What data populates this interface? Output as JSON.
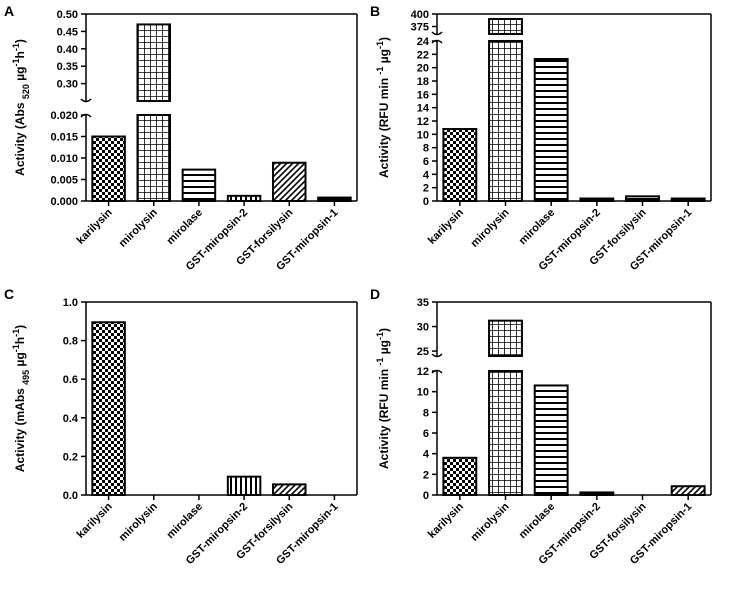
{
  "categories": [
    "karilysin",
    "mirolysin",
    "mirolase",
    "GST-miropsin-2",
    "GST-forsilysin",
    "GST-miropsin-1"
  ],
  "chart_data": [
    {
      "panel": "A",
      "type": "bar",
      "ylabel": "Activity (Abs 520 µg⁻¹h⁻¹)",
      "ylabel_parts": {
        "main": "Activity (Abs",
        "sub": "520",
        "unit1": "µg",
        "sup1": "-1",
        "unit2": "h",
        "sup2": "-1",
        "close": ")"
      },
      "values": [
        0.015,
        0.47,
        0.0073,
        0.0012,
        0.0089,
        0.0008
      ],
      "patterns": [
        "checker",
        "grid",
        "hlines",
        "vlines",
        "diag",
        "hlines"
      ],
      "segments": [
        {
          "min": 0,
          "max": 0.02,
          "ticks": [
            "0.000",
            "0.005",
            "0.010",
            "0.015",
            "0.020"
          ],
          "tickvals": [
            0,
            0.005,
            0.01,
            0.015,
            0.02
          ]
        },
        {
          "min": 0.25,
          "max": 0.5,
          "ticks": [
            "0.30",
            "0.35",
            "0.40",
            "0.45",
            "0.50"
          ],
          "tickvals": [
            0.3,
            0.35,
            0.4,
            0.45,
            0.5
          ]
        }
      ]
    },
    {
      "panel": "B",
      "type": "bar",
      "ylabel": "Activity (RFU min⁻¹ µg⁻¹)",
      "ylabel_parts": {
        "main": "Activity (RFU min",
        "sub": "",
        "unit1": "",
        "sup1": "-1",
        "unit2": " µg",
        "sup2": "-1",
        "close": ")"
      },
      "values": [
        10.8,
        390,
        21.3,
        0.15,
        0.7,
        0.25
      ],
      "patterns": [
        "checker",
        "grid",
        "hlines",
        "hlines",
        "hlines",
        "hlines"
      ],
      "segments": [
        {
          "min": 0,
          "max": 24,
          "ticks": [
            "0",
            "2",
            "4",
            "6",
            "8",
            "10",
            "12",
            "14",
            "16",
            "18",
            "20",
            "22",
            "24"
          ],
          "tickvals": [
            0,
            2,
            4,
            6,
            8,
            10,
            12,
            14,
            16,
            18,
            20,
            22,
            24
          ]
        },
        {
          "min": 360,
          "max": 400,
          "ticks": [
            "375",
            "400"
          ],
          "tickvals": [
            375,
            400
          ]
        }
      ]
    },
    {
      "panel": "C",
      "type": "bar",
      "ylabel": "Activity (mAbs 495 µg⁻¹h⁻¹)",
      "ylabel_parts": {
        "main": "Activity (mAbs",
        "sub": "495",
        "unit1": "µg",
        "sup1": "-1",
        "unit2": "h",
        "sup2": "-1",
        "close": ")"
      },
      "values": [
        0.895,
        0,
        0,
        0.095,
        0.055,
        0
      ],
      "patterns": [
        "checker",
        "grid",
        "hlines",
        "vlines",
        "diag",
        "hlines"
      ],
      "segments": [
        {
          "min": 0,
          "max": 1.0,
          "ticks": [
            "0.0",
            "0.2",
            "0.4",
            "0.6",
            "0.8",
            "1.0"
          ],
          "tickvals": [
            0,
            0.2,
            0.4,
            0.6,
            0.8,
            1.0
          ]
        }
      ]
    },
    {
      "panel": "D",
      "type": "bar",
      "ylabel": "Activity (RFU min⁻¹ µg⁻¹)",
      "ylabel_parts": {
        "main": "Activity (RFU min",
        "sub": "",
        "unit1": "",
        "sup1": "-1",
        "unit2": " µg",
        "sup2": "-1",
        "close": ")"
      },
      "values": [
        3.6,
        31.2,
        10.6,
        0.25,
        0,
        0.85
      ],
      "patterns": [
        "checker",
        "grid",
        "hlines",
        "hlines",
        "hlines",
        "diag"
      ],
      "segments": [
        {
          "min": 0,
          "max": 12,
          "ticks": [
            "0",
            "2",
            "4",
            "6",
            "8",
            "10",
            "12"
          ],
          "tickvals": [
            0,
            2,
            4,
            6,
            8,
            10,
            12
          ]
        },
        {
          "min": 24,
          "max": 35,
          "ticks": [
            "25",
            "30",
            "35"
          ],
          "tickvals": [
            25,
            30,
            35
          ]
        }
      ]
    }
  ]
}
